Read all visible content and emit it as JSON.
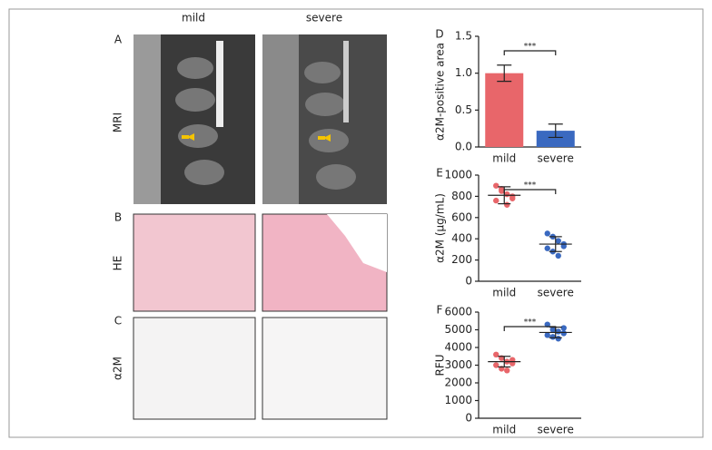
{
  "figure": {
    "columns": [
      "mild",
      "severe"
    ],
    "rows": [
      {
        "letter": "A",
        "label": "MRI"
      },
      {
        "letter": "B",
        "label": "HE"
      },
      {
        "letter": "C",
        "label": "α2M"
      }
    ]
  },
  "chart_data": [
    {
      "type": "bar",
      "letter": "D",
      "ylabel": "α2M-positive area",
      "categories": [
        "mild",
        "severe"
      ],
      "values": [
        1.0,
        0.22
      ],
      "errors": [
        0.11,
        0.09
      ],
      "colors": [
        "#e8666a",
        "#3a69c0"
      ],
      "ylim": [
        0,
        1.5
      ],
      "yticks": [
        {
          "value": 0,
          "label": "0.0"
        },
        {
          "value": 0.5,
          "label": "0.5"
        },
        {
          "value": 1,
          "label": "1.0"
        },
        {
          "value": 1.5,
          "label": "1.5"
        }
      ],
      "annotation": "***"
    },
    {
      "type": "dot",
      "letter": "E",
      "ylabel": "α2M (μg/mL)",
      "categories": [
        "mild",
        "severe"
      ],
      "points": [
        [
          900,
          870,
          820,
          780,
          760,
          850,
          720,
          800
        ],
        [
          450,
          420,
          380,
          350,
          310,
          280,
          240,
          330
        ]
      ],
      "means": [
        810,
        350
      ],
      "sd": [
        80,
        70
      ],
      "colors": [
        "#e8666a",
        "#3a69c0"
      ],
      "ylim": [
        0,
        1000
      ],
      "yticks": [
        0,
        200,
        400,
        600,
        800,
        1000
      ],
      "annotation": "***"
    },
    {
      "type": "dot",
      "letter": "F",
      "ylabel": "RFU",
      "categories": [
        "mild",
        "severe"
      ],
      "points": [
        [
          3600,
          3400,
          3200,
          3100,
          3000,
          2800,
          2700,
          3300
        ],
        [
          5300,
          5000,
          4900,
          4800,
          4700,
          4600,
          4500,
          5100
        ]
      ],
      "means": [
        3200,
        4850
      ],
      "sd": [
        300,
        300
      ],
      "colors": [
        "#e8666a",
        "#3a69c0"
      ],
      "ylim": [
        0,
        6000
      ],
      "yticks": [
        0,
        1000,
        2000,
        3000,
        4000,
        5000,
        6000
      ],
      "annotation": "***"
    }
  ]
}
